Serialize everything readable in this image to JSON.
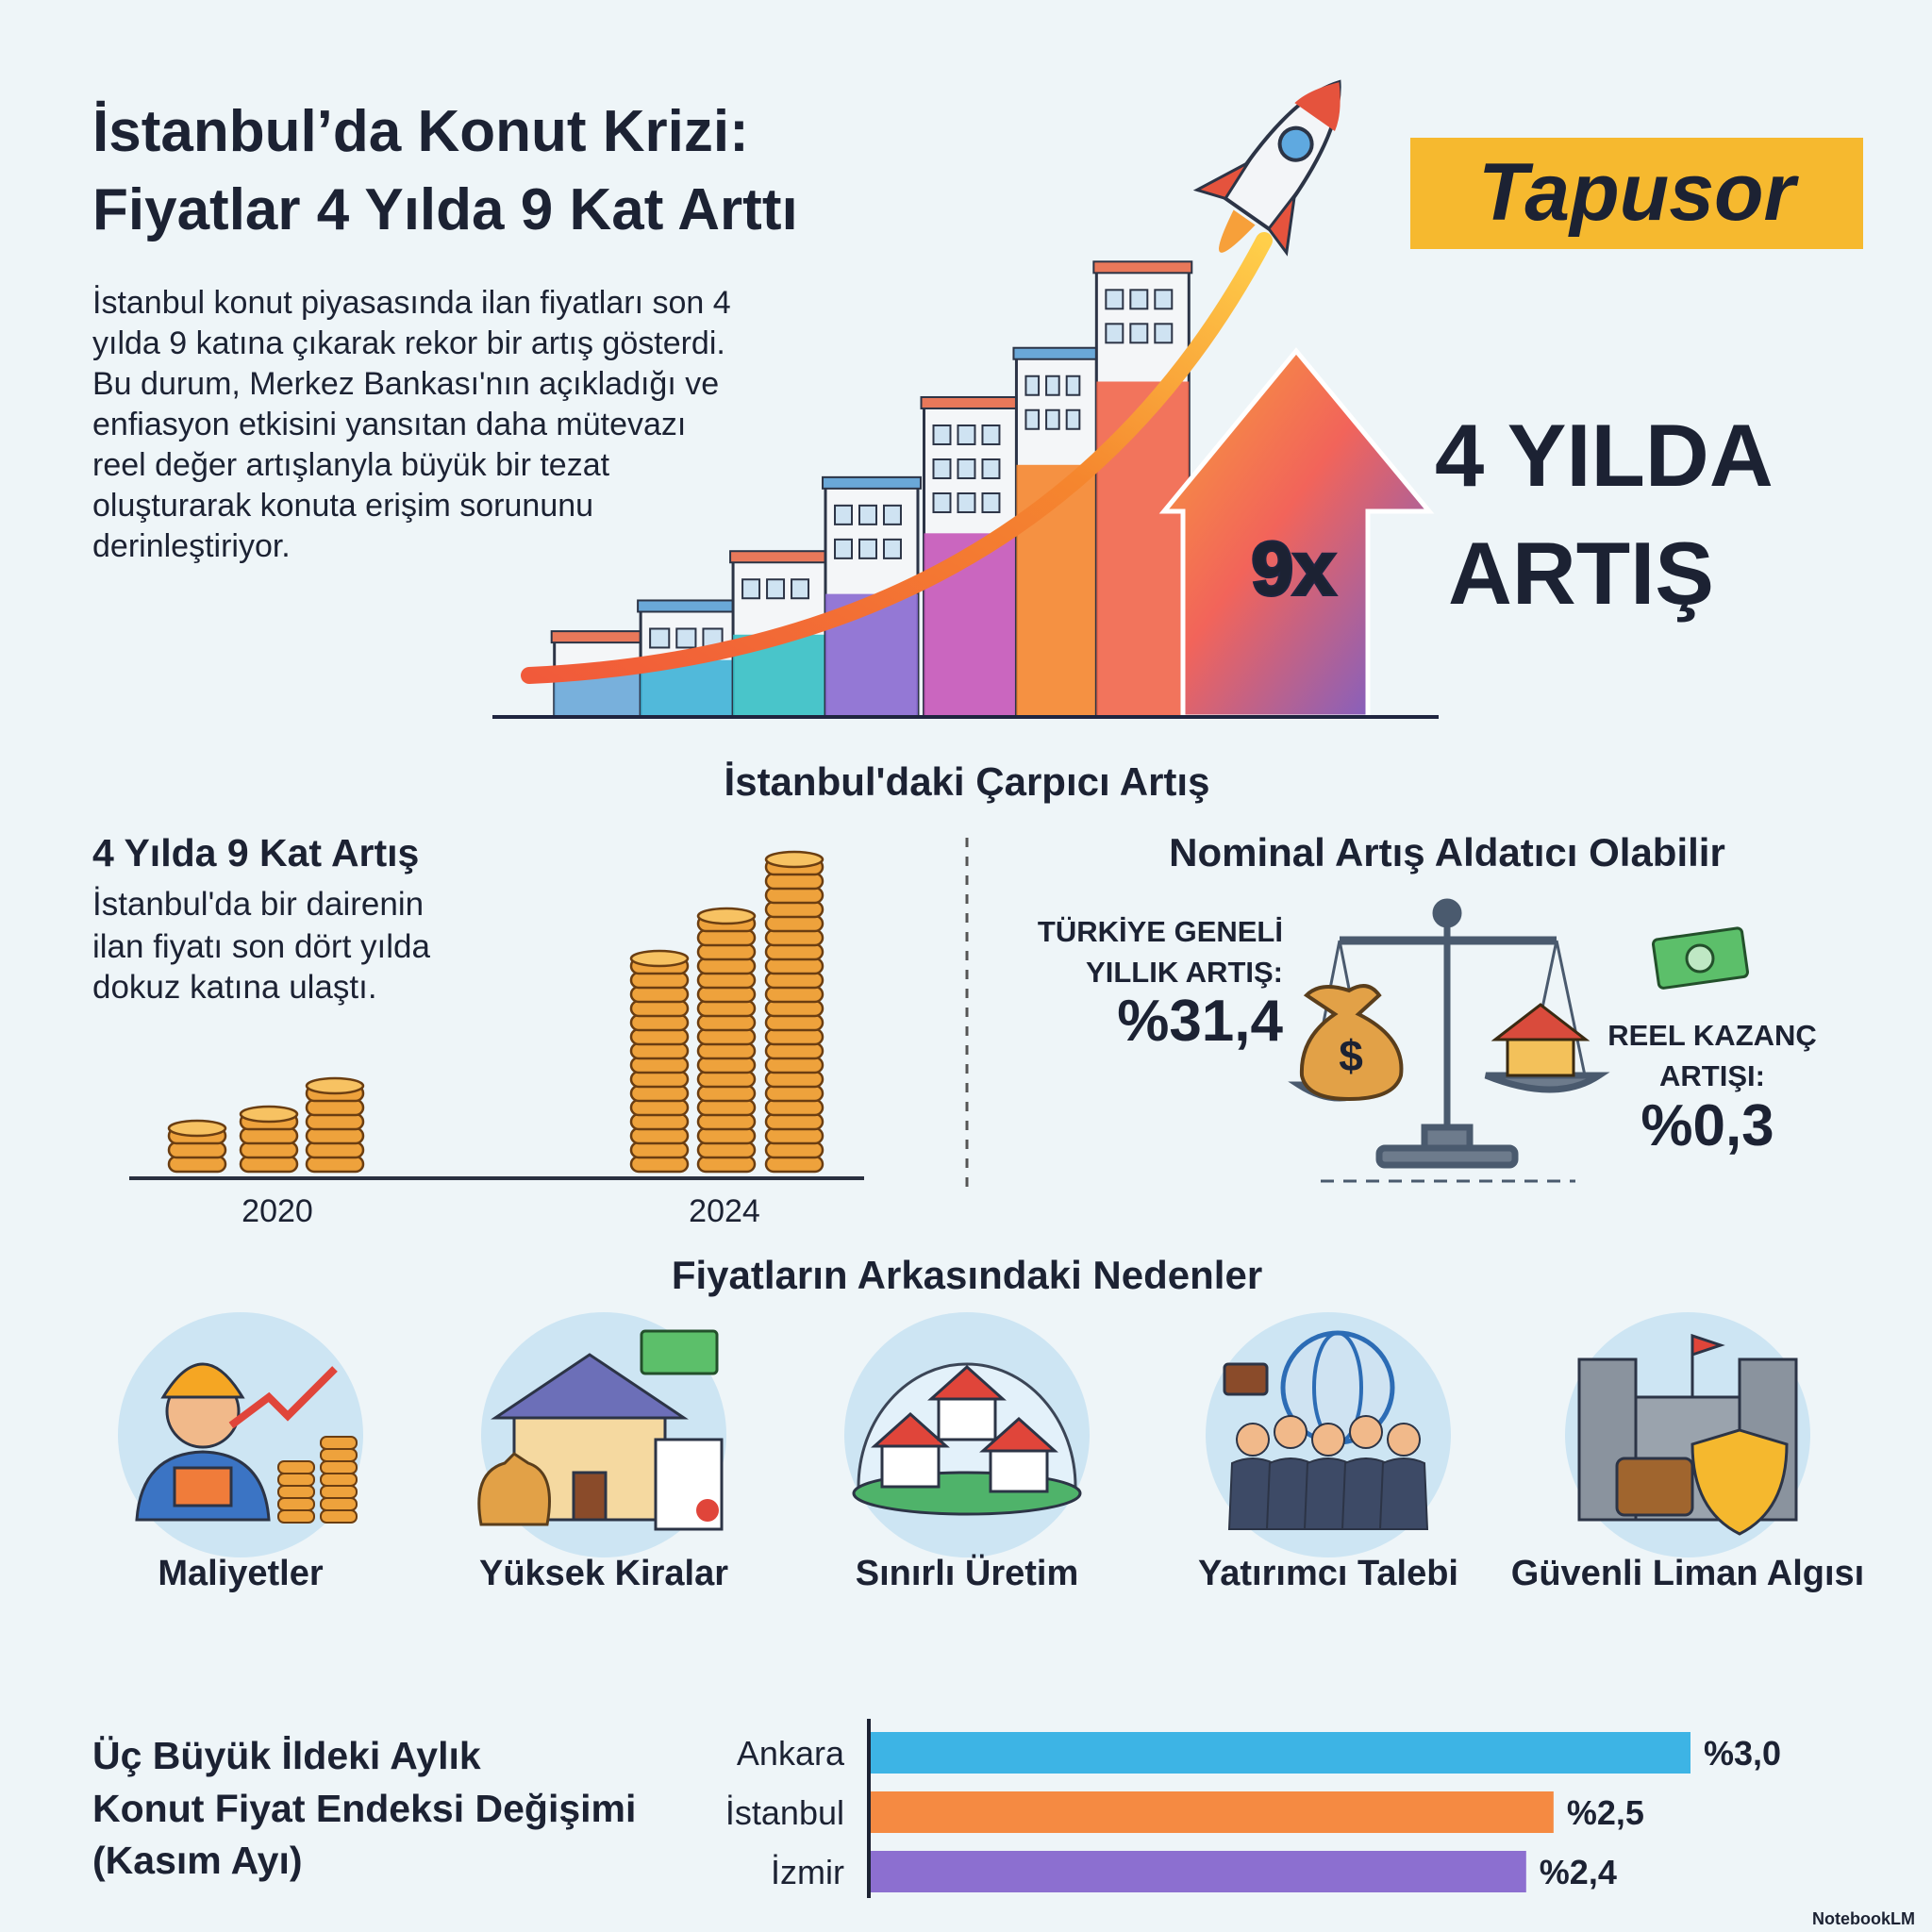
{
  "header": {
    "title_lines": [
      "İstanbul’da Konut Krizi:",
      "Fiyatlar 4 Yılda 9 Kat Arttı"
    ],
    "intro_lines": [
      "İstanbul konut piyasasında ilan fiyatları son 4",
      "yılda 9 katına çıkarak rekor bir artış gösterdi.",
      "Bu durum, Merkez Bankası'nın açıkladığı ve",
      "enfiasyon etkisini yansıtan daha mütevazı",
      "reel değer artışlanyla büyük bir tezat",
      "oluşturarak konuta erişim sorununu",
      "derinleştiriyor."
    ],
    "logo": "Tapusor"
  },
  "hero": {
    "multiplier": "9x",
    "headline_lines": [
      "4 YILDA",
      "ARTIŞ"
    ]
  },
  "section_increase": {
    "title": "İstanbul'daki Çarpıcı Artış",
    "left": {
      "title": "4 Yılda 9 Kat Artış",
      "text_lines": [
        "İstanbul'da bir dairenin",
        "ilan fiyatı son dört yılda",
        "dokuz katına ulaştı."
      ],
      "categories": [
        "2020",
        "2024"
      ]
    },
    "right": {
      "title": "Nominal Artış Aldatıcı Olabilir",
      "national_label_lines": [
        "TÜRKİYE GENELİ",
        "YILLIK ARTIŞ:"
      ],
      "national_value": "%31,4",
      "real_label_lines": [
        "REEL KAZANÇ",
        "ARTIŞI:"
      ],
      "real_value": "%0,3"
    }
  },
  "reasons": {
    "title": "Fiyatların Arkasındaki Nedenler",
    "items": [
      "Maliyetler",
      "Yüksek Kiralar",
      "Sınırlı Üretim",
      "Yatırımcı Talebi",
      "Güvenli Liman Algısı"
    ]
  },
  "chart_data": {
    "type": "bar",
    "orientation": "horizontal",
    "title_lines": [
      "Üç Büyük İldeki Aylık",
      "Konut Fiyat Endeksi Değişimi",
      "(Kasım Ayı)"
    ],
    "categories": [
      "Ankara",
      "İstanbul",
      "İzmir"
    ],
    "values": [
      3.0,
      2.5,
      2.4
    ],
    "value_labels": [
      "%3,0",
      "%2,5",
      "%2,4"
    ],
    "colors": [
      "#3db4e5",
      "#f58a42",
      "#8c6fd0"
    ]
  },
  "footer": {
    "brand": "NotebookLM"
  }
}
